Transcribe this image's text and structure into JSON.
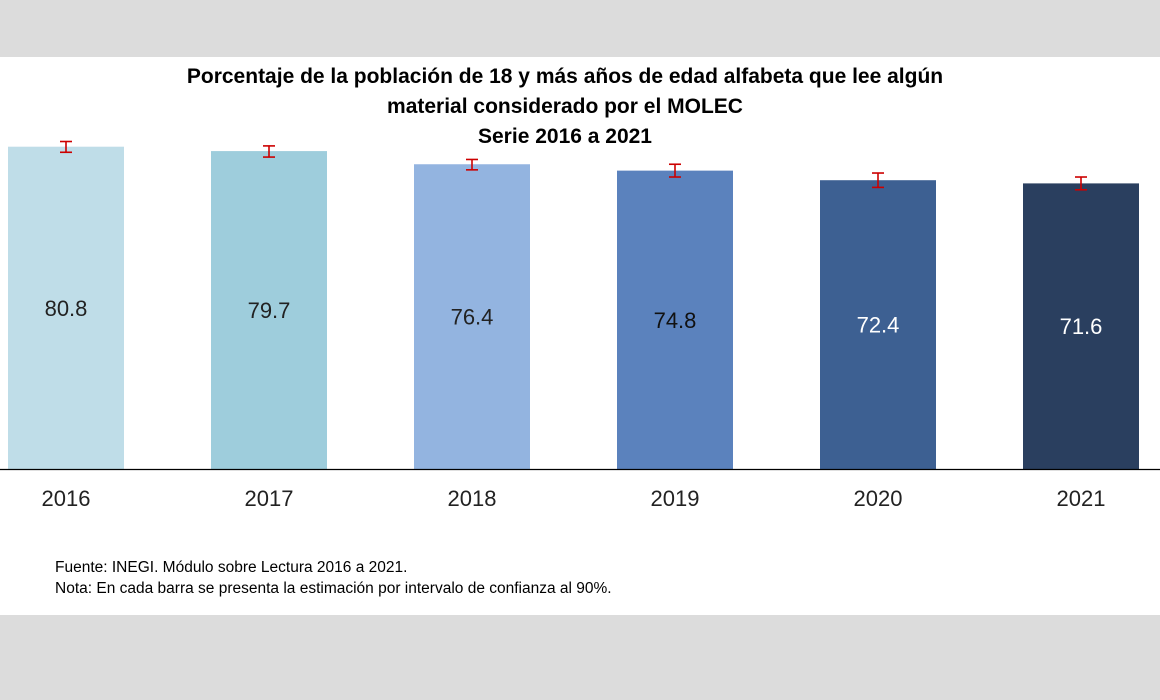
{
  "chart_data": {
    "type": "bar",
    "title_lines": [
      "Porcentaje de la población de 18 y más años de edad alfabeta que lee algún",
      "material considerado por el MOLEC",
      "Serie 2016 a 2021"
    ],
    "categories": [
      "2016",
      "2017",
      "2018",
      "2019",
      "2020",
      "2021"
    ],
    "values": [
      80.8,
      79.7,
      76.4,
      74.8,
      72.4,
      71.6
    ],
    "value_labels": [
      "80.8",
      "79.7",
      "76.4",
      "74.8",
      "72.4",
      "71.6"
    ],
    "error_low": [
      79.4,
      78.2,
      75.0,
      73.2,
      70.6,
      70.0
    ],
    "error_high": [
      82.1,
      81.0,
      77.6,
      76.4,
      74.2,
      73.2
    ],
    "bar_colors": [
      "#bfdde8",
      "#9ecddc",
      "#93b4e0",
      "#5b82bd",
      "#3d6092",
      "#2a3f5f"
    ],
    "label_colors": [
      "#222222",
      "#222222",
      "#222222",
      "#111111",
      "#ffffff",
      "#ffffff"
    ],
    "error_bar_color": "#cc0000",
    "xlabel": "",
    "ylabel": "",
    "ylim": [
      0,
      90
    ],
    "grid": false,
    "legend": "none"
  },
  "footer": {
    "source": "Fuente: INEGI. Módulo sobre Lectura 2016 a 2021.",
    "note": "Nota: En cada barra se presenta la estimación por intervalo de confianza al 90%."
  }
}
